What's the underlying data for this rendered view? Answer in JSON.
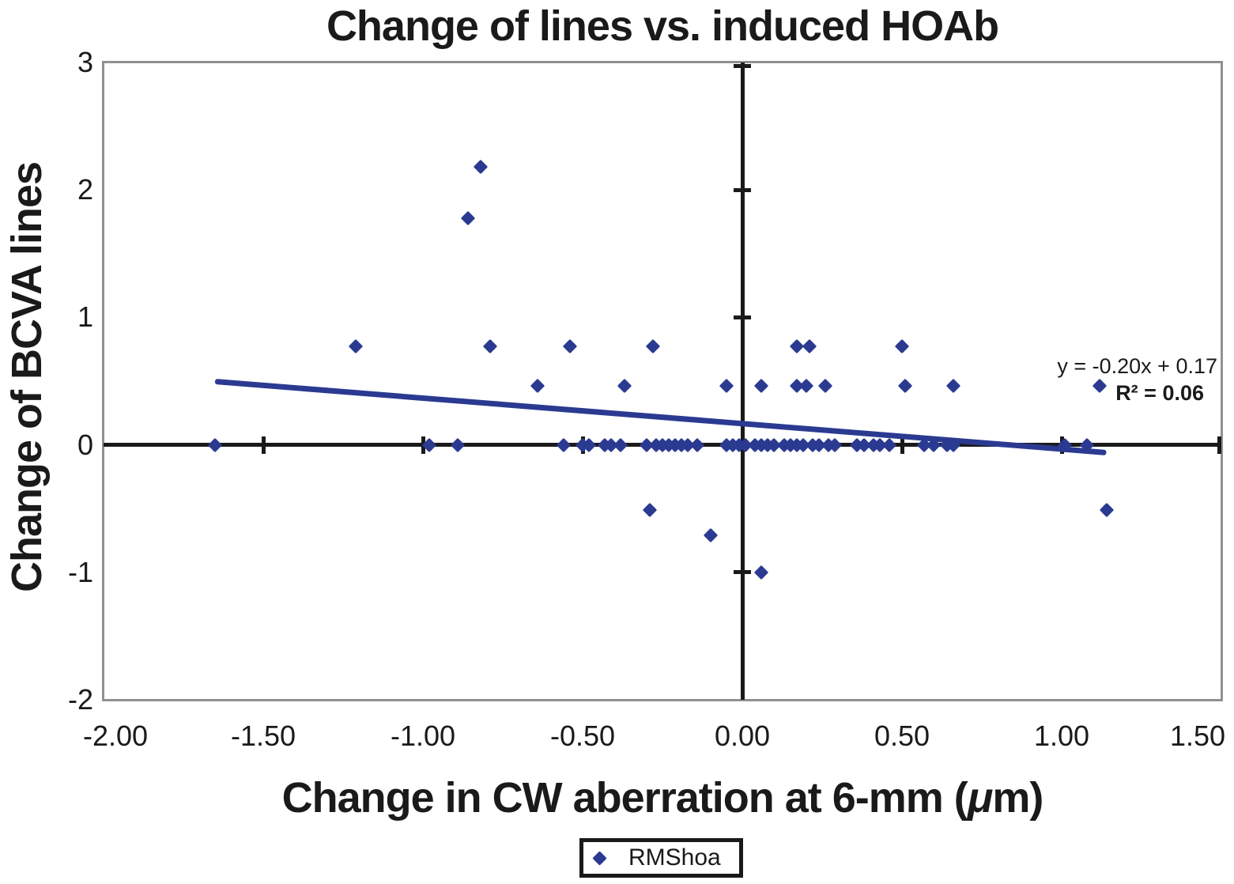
{
  "chart_data": {
    "type": "scatter",
    "title": "Change of lines vs. induced HOAb",
    "xlabel": "Change in CW aberration at 6-mm (μm)",
    "xlabel_parts": [
      "Change in CW aberration at 6-mm (",
      "μ",
      "m)"
    ],
    "ylabel": "Change of BCVA lines",
    "xlim": [
      -2.0,
      1.5
    ],
    "ylim": [
      -2,
      3
    ],
    "x_tick_values": [
      -2.0,
      -1.5,
      -1.0,
      -0.5,
      0.0,
      0.5,
      1.0,
      1.5
    ],
    "x_tick_labels": [
      "-2.00",
      "-1.50",
      "-1.00",
      "-0.50",
      "0.00",
      "0.50",
      "1.00",
      "1.50"
    ],
    "y_tick_values": [
      3,
      2,
      1,
      0,
      -1,
      -2
    ],
    "y_tick_labels": [
      "3",
      "2",
      "1",
      "0",
      "-1",
      "-2"
    ],
    "axis_cross": {
      "x": 0,
      "y": 0
    },
    "tick_marks_on_horizontal_axis": [
      -1.5,
      -1.0,
      -0.5,
      0.5,
      1.0,
      1.5
    ],
    "tick_marks_on_vertical_axis": [
      3,
      2,
      1,
      -1
    ],
    "grid": false,
    "legend_position": "bottom",
    "series": [
      {
        "name": "RMShoa",
        "marker": "diamond",
        "color": "#2B3A91",
        "points": [
          [
            -0.86,
            1.78
          ],
          [
            -0.82,
            2.18
          ],
          [
            -1.21,
            0.77
          ],
          [
            -0.79,
            0.77
          ],
          [
            -0.54,
            0.77
          ],
          [
            -0.28,
            0.77
          ],
          [
            0.17,
            0.77
          ],
          [
            0.21,
            0.77
          ],
          [
            0.5,
            0.77
          ],
          [
            -0.64,
            0.46
          ],
          [
            -0.37,
            0.46
          ],
          [
            -0.05,
            0.46
          ],
          [
            0.06,
            0.46
          ],
          [
            0.17,
            0.46
          ],
          [
            0.2,
            0.46
          ],
          [
            0.26,
            0.46
          ],
          [
            0.51,
            0.46
          ],
          [
            0.66,
            0.46
          ],
          [
            1.12,
            0.46
          ],
          [
            -1.65,
            0
          ],
          [
            -0.98,
            0
          ],
          [
            -0.89,
            0
          ],
          [
            -0.56,
            0
          ],
          [
            -0.5,
            0
          ],
          [
            -0.48,
            0
          ],
          [
            -0.43,
            0
          ],
          [
            -0.41,
            0
          ],
          [
            -0.38,
            0
          ],
          [
            -0.3,
            0
          ],
          [
            -0.27,
            0
          ],
          [
            -0.25,
            0
          ],
          [
            -0.23,
            0
          ],
          [
            -0.21,
            0
          ],
          [
            -0.19,
            0
          ],
          [
            -0.17,
            0
          ],
          [
            -0.14,
            0
          ],
          [
            -0.05,
            0
          ],
          [
            -0.03,
            0
          ],
          [
            -0.01,
            0
          ],
          [
            0.01,
            0
          ],
          [
            0.04,
            0
          ],
          [
            0.06,
            0
          ],
          [
            0.08,
            0
          ],
          [
            0.1,
            0
          ],
          [
            0.13,
            0
          ],
          [
            0.15,
            0
          ],
          [
            0.17,
            0
          ],
          [
            0.19,
            0
          ],
          [
            0.22,
            0
          ],
          [
            0.24,
            0
          ],
          [
            0.27,
            0
          ],
          [
            0.29,
            0
          ],
          [
            0.36,
            0
          ],
          [
            0.38,
            0
          ],
          [
            0.41,
            0
          ],
          [
            0.43,
            0
          ],
          [
            0.46,
            0
          ],
          [
            0.57,
            0
          ],
          [
            0.6,
            0
          ],
          [
            0.64,
            0
          ],
          [
            0.66,
            0
          ],
          [
            1.01,
            0
          ],
          [
            1.08,
            0
          ],
          [
            -0.29,
            -0.51
          ],
          [
            -0.1,
            -0.71
          ],
          [
            0.06,
            -1.0
          ],
          [
            1.14,
            -0.51
          ]
        ]
      }
    ],
    "trendline": {
      "equation": "y = -0.20x + 0.17",
      "r2": "R² = 0.06",
      "slope": -0.2,
      "intercept": 0.17,
      "x_start": -1.65,
      "x_end": 1.14,
      "color": "#2B3A91"
    }
  },
  "legend": {
    "label": "RMShoa"
  },
  "colors": {
    "marker": "#2B3A91",
    "trendline": "#2B3A91",
    "axis": "#1A1A1A",
    "plot_border": "#919191",
    "text": "#1A1A1A",
    "background": "#FFFFFF"
  }
}
